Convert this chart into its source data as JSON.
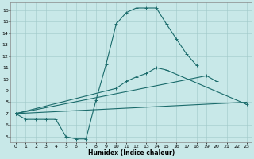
{
  "xlabel": "Humidex (Indice chaleur)",
  "xlim": [
    -0.5,
    23.5
  ],
  "ylim": [
    4.5,
    16.7
  ],
  "xticks": [
    0,
    1,
    2,
    3,
    4,
    5,
    6,
    7,
    8,
    9,
    10,
    11,
    12,
    13,
    14,
    15,
    16,
    17,
    18,
    19,
    20,
    21,
    22,
    23
  ],
  "yticks": [
    5,
    6,
    7,
    8,
    9,
    10,
    11,
    12,
    13,
    14,
    15,
    16
  ],
  "bg_color": "#c8e8e8",
  "line_color": "#1a6b6b",
  "grid_color": "#a0c8c8",
  "line1_x": [
    0,
    1,
    2,
    3,
    4,
    5,
    6,
    7,
    8,
    9,
    10,
    11,
    12,
    13,
    14,
    15,
    16,
    17,
    18
  ],
  "line1_y": [
    7.0,
    6.5,
    6.5,
    6.5,
    6.5,
    5.0,
    4.8,
    4.8,
    8.2,
    11.3,
    14.8,
    15.8,
    16.2,
    16.2,
    16.2,
    14.8,
    13.5,
    12.2,
    11.2
  ],
  "line2_x": [
    0,
    23
  ],
  "line2_y": [
    7.0,
    8.0
  ],
  "line3_x": [
    0,
    19,
    20
  ],
  "line3_y": [
    7.0,
    10.3,
    9.8
  ],
  "line4_x": [
    0,
    10,
    11,
    12,
    13,
    14,
    15,
    23
  ],
  "line4_y": [
    7.0,
    9.2,
    9.8,
    10.2,
    10.5,
    11.0,
    10.8,
    7.8
  ]
}
